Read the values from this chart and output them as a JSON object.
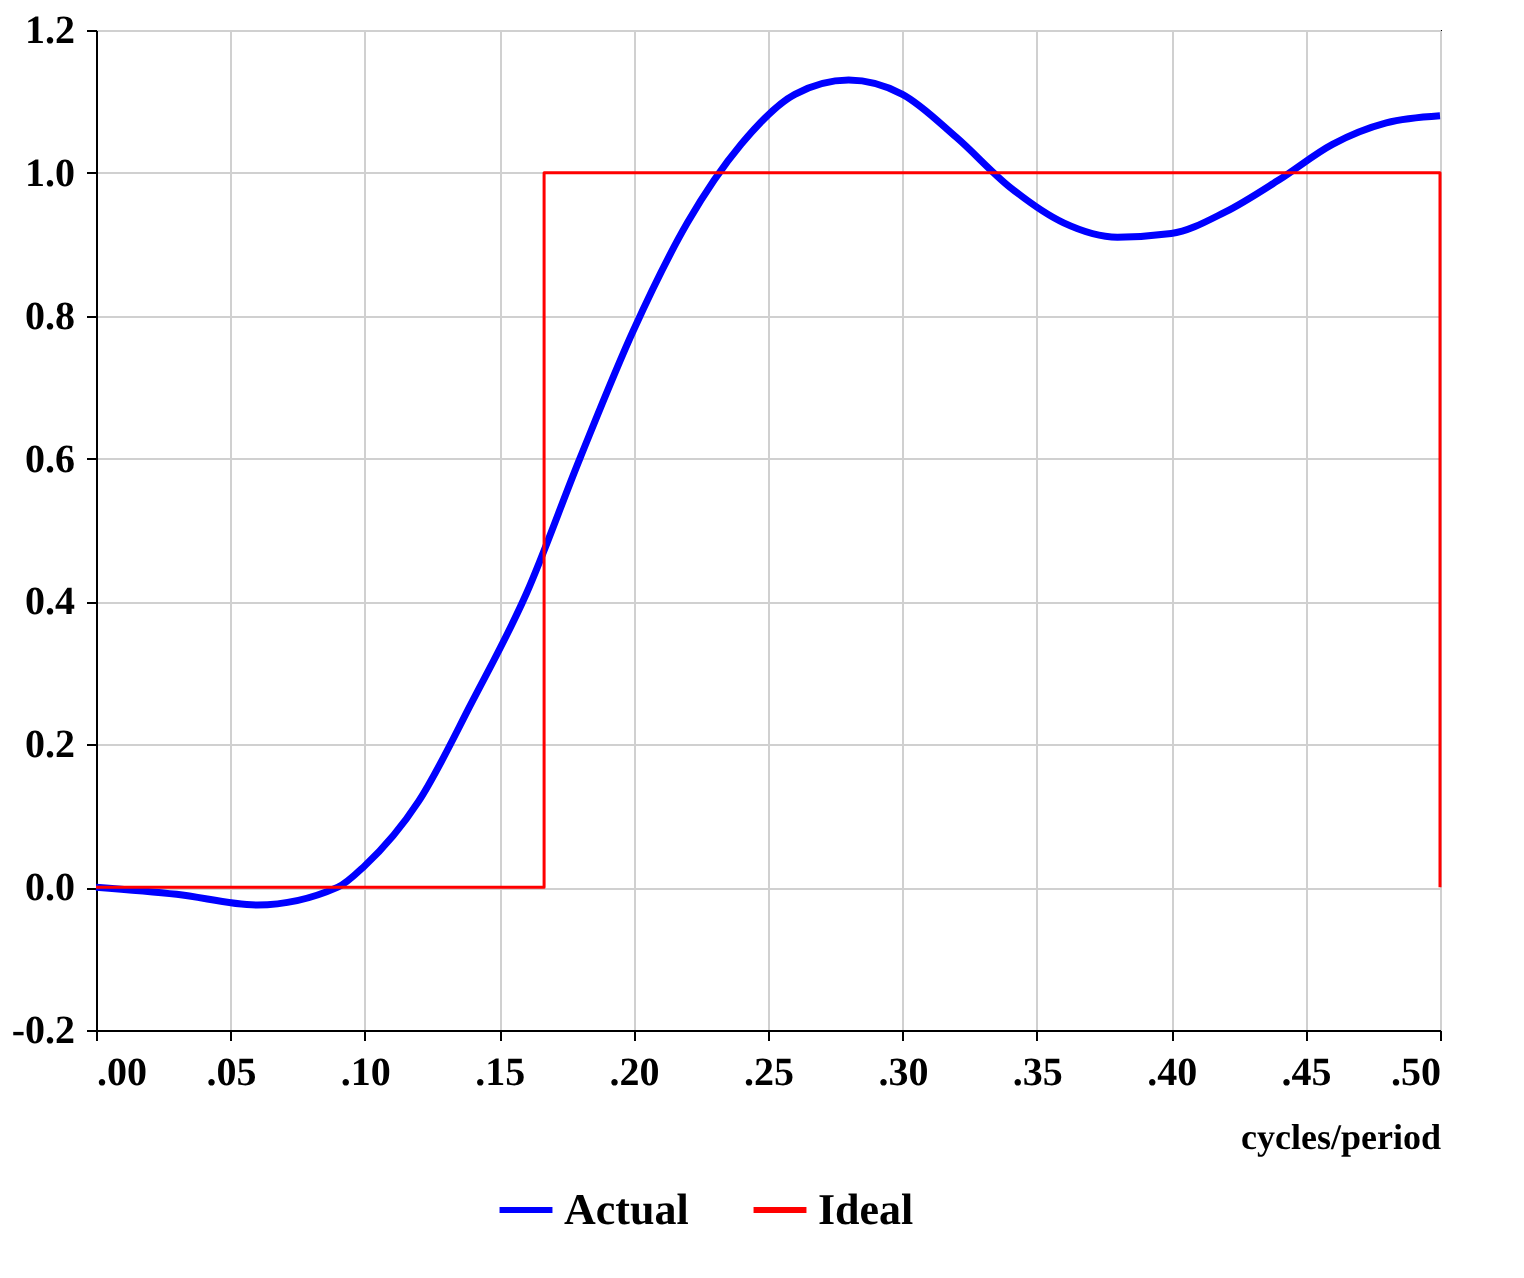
{
  "chart_data": {
    "type": "line",
    "xlabel": "cycles/period",
    "xlim": [
      0,
      0.5
    ],
    "xticks": [
      {
        "value": 0,
        "label": ".00"
      },
      {
        "value": 0.05,
        "label": ".05"
      },
      {
        "value": 0.1,
        "label": ".10"
      },
      {
        "value": 0.15,
        "label": ".15"
      },
      {
        "value": 0.2,
        "label": ".20"
      },
      {
        "value": 0.25,
        "label": ".25"
      },
      {
        "value": 0.3,
        "label": ".30"
      },
      {
        "value": 0.35,
        "label": ".35"
      },
      {
        "value": 0.4,
        "label": ".40"
      },
      {
        "value": 0.45,
        "label": ".45"
      },
      {
        "value": 0.5,
        "label": ".50"
      }
    ],
    "ylim": [
      -0.2,
      1.2
    ],
    "yticks": [
      -0.2,
      {
        "value": 0,
        "label": "0.0"
      },
      0.2,
      0.4,
      0.6,
      0.8,
      {
        "value": 1,
        "label": "1.0"
      },
      1.2
    ],
    "grid": true,
    "legend": "bottom",
    "line_style": "solid",
    "series": [
      {
        "name": "Actual",
        "color": "#0000ff",
        "x": [
          0,
          0.03,
          0.06,
          0.09,
          0.1,
          0.12,
          0.14,
          0.16,
          0.18,
          0.2,
          0.22,
          0.24,
          0.26,
          0.28,
          0.3,
          0.32,
          0.34,
          0.36,
          0.38,
          0.4,
          0.42,
          0.44,
          0.46,
          0.48,
          0.5
        ],
        "values": [
          0,
          -0.01,
          -0.025,
          0,
          0.03,
          0.12,
          0.26,
          0.41,
          0.6,
          0.78,
          0.93,
          1.04,
          1.11,
          1.13,
          1.11,
          1.05,
          0.98,
          0.93,
          0.91,
          0.915,
          0.945,
          0.99,
          1.04,
          1.07,
          1.08
        ]
      },
      {
        "name": "Ideal",
        "color": "#ff0000",
        "x": [
          0,
          0.1667,
          0.1667,
          0.5,
          0.5
        ],
        "values": [
          0,
          0,
          1,
          1,
          0
        ]
      }
    ]
  }
}
